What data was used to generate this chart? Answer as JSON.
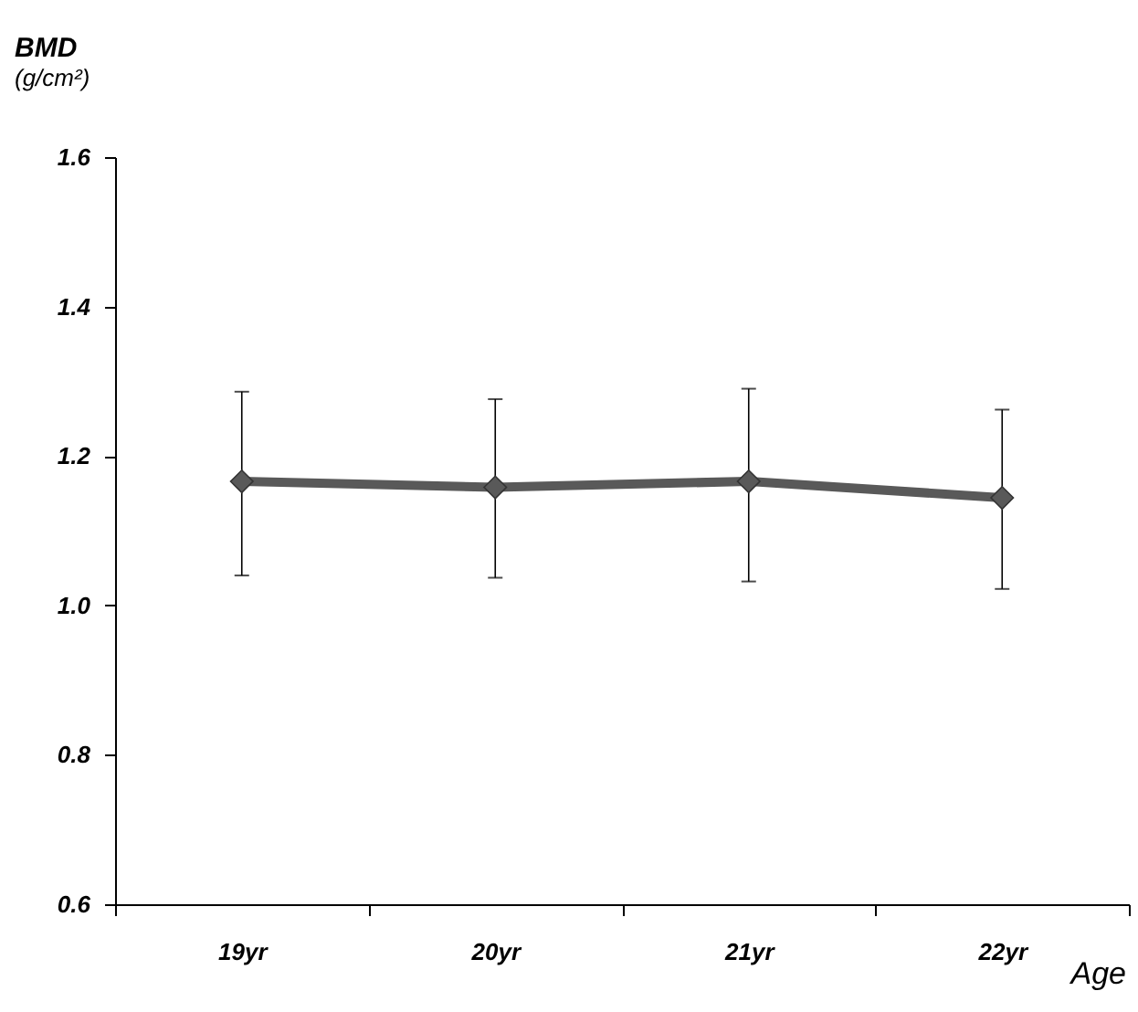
{
  "chart_data": {
    "type": "line",
    "title": "BMD",
    "subtitle": "(g/cm²)",
    "xlabel": "Age",
    "categories": [
      "19yr",
      "20yr",
      "21yr",
      "22yr"
    ],
    "series": [
      {
        "color": "#595959",
        "values": [
          1.166,
          1.158,
          1.166,
          1.144
        ],
        "errors": [
          [
            1.04,
            1.286
          ],
          [
            1.037,
            1.276
          ],
          [
            1.032,
            1.29
          ],
          [
            1.022,
            1.262
          ]
        ]
      }
    ],
    "ylim": [
      0.6,
      1.6
    ],
    "yticks": [
      {
        "value": 0.6,
        "label": "0.6"
      },
      {
        "value": 0.8,
        "label": "0.8"
      },
      {
        "value": 1.0,
        "label": "1.0"
      },
      {
        "value": 1.2,
        "label": "1.2"
      },
      {
        "value": 1.4,
        "label": "1.4"
      },
      {
        "value": 1.6,
        "label": "1.6"
      }
    ],
    "grid": false,
    "legend": false,
    "marker": "diamond",
    "line_style": "solid"
  }
}
